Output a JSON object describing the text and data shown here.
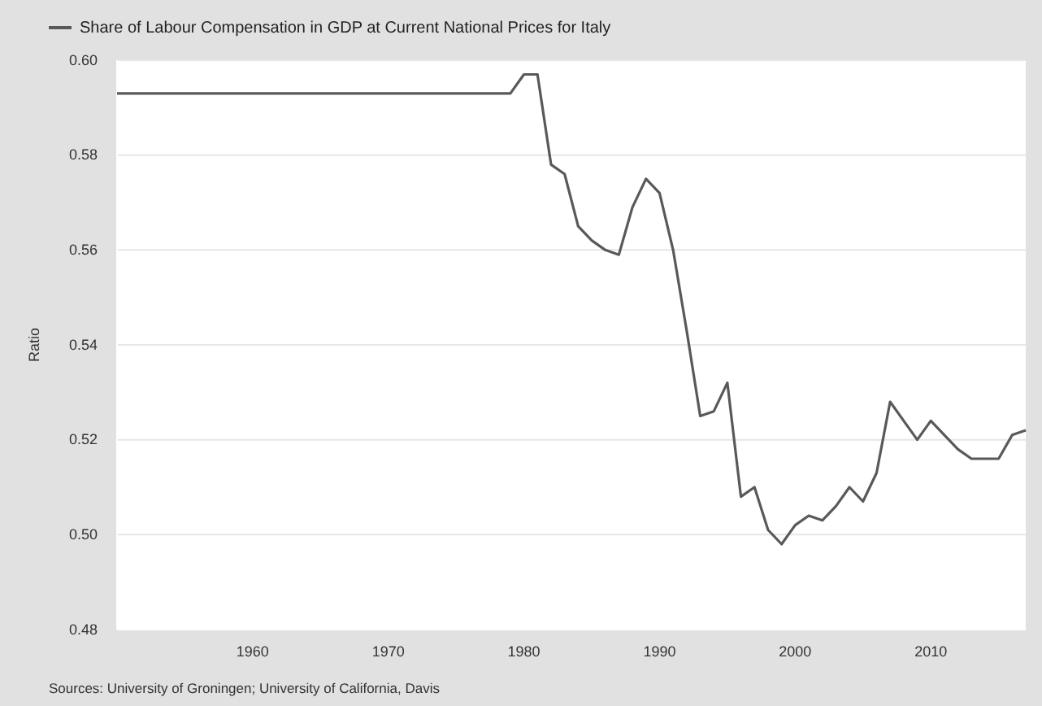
{
  "chart_data": {
    "type": "line",
    "ylabel": "Ratio",
    "annotations": [
      "Sources: University of Groningen; University of California, Davis"
    ],
    "x": [
      1950,
      1951,
      1952,
      1953,
      1954,
      1955,
      1956,
      1957,
      1958,
      1959,
      1960,
      1961,
      1962,
      1963,
      1964,
      1965,
      1966,
      1967,
      1968,
      1969,
      1970,
      1971,
      1972,
      1973,
      1974,
      1975,
      1976,
      1977,
      1978,
      1979,
      1980,
      1981,
      1982,
      1983,
      1984,
      1985,
      1986,
      1987,
      1988,
      1989,
      1990,
      1991,
      1992,
      1993,
      1994,
      1995,
      1996,
      1997,
      1998,
      1999,
      2000,
      2001,
      2002,
      2003,
      2004,
      2005,
      2006,
      2007,
      2008,
      2009,
      2010,
      2011,
      2012,
      2013,
      2014,
      2015,
      2016,
      2017
    ],
    "series": [
      {
        "name": "Share of Labour Compensation in GDP at Current National Prices for Italy",
        "color": "#595959",
        "values": [
          0.593,
          0.593,
          0.593,
          0.593,
          0.593,
          0.593,
          0.593,
          0.593,
          0.593,
          0.593,
          0.593,
          0.593,
          0.593,
          0.593,
          0.593,
          0.593,
          0.593,
          0.593,
          0.593,
          0.593,
          0.593,
          0.593,
          0.593,
          0.593,
          0.593,
          0.593,
          0.593,
          0.593,
          0.593,
          0.593,
          0.597,
          0.597,
          0.578,
          0.576,
          0.565,
          0.562,
          0.56,
          0.559,
          0.569,
          0.575,
          0.572,
          0.56,
          0.543,
          0.525,
          0.526,
          0.532,
          0.508,
          0.51,
          0.501,
          0.498,
          0.502,
          0.504,
          0.503,
          0.506,
          0.51,
          0.507,
          0.513,
          0.528,
          0.524,
          0.52,
          0.524,
          0.521,
          0.518,
          0.516,
          0.516,
          0.516,
          0.521,
          0.522
        ]
      }
    ],
    "xlim": [
      1950,
      2017
    ],
    "xticks": [
      1960,
      1970,
      1980,
      1990,
      2000,
      2010
    ],
    "ylim": [
      0.48,
      0.6
    ],
    "yticks": [
      {
        "value": 0.48,
        "label": "0.48"
      },
      {
        "value": 0.5,
        "label": "0.50"
      },
      {
        "value": 0.52,
        "label": "0.52"
      },
      {
        "value": 0.54,
        "label": "0.54"
      },
      {
        "value": 0.56,
        "label": "0.56"
      },
      {
        "value": 0.58,
        "label": "0.58"
      },
      {
        "value": 0.6,
        "label": "0.60"
      }
    ],
    "grid": "y",
    "legend": "top left",
    "line_style": "solid",
    "marker": "none"
  }
}
